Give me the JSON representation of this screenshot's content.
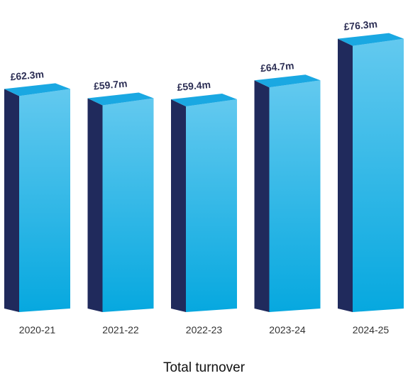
{
  "chart_data": {
    "type": "bar",
    "style": "3d-columns",
    "title": "Total turnover",
    "categories": [
      "2020-21",
      "2021-22",
      "2022-23",
      "2023-24",
      "2024-25"
    ],
    "values": [
      62.3,
      59.7,
      59.4,
      64.7,
      76.3
    ],
    "data_labels": [
      "£62.3m",
      "£59.7m",
      "£59.4m",
      "£64.7m",
      "£76.3m"
    ],
    "unit": "£m",
    "ylim": [
      0,
      80
    ],
    "grid": false,
    "legend": "none",
    "colors": {
      "front_light": "#63c9ef",
      "front_dark": "#06a8df",
      "top": "#1aa8e2",
      "side": "#202a5c",
      "label_text": "#2d2f55",
      "tick_text": "#333333",
      "title_text": "#111111"
    }
  }
}
